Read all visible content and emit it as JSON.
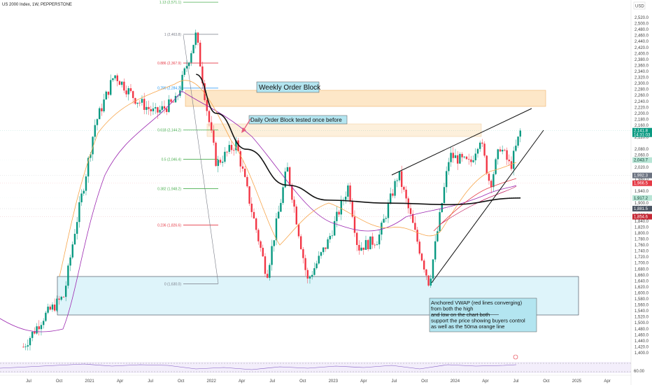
{
  "header": {
    "symbol_title": "US 2000 Index, 1W, PEPPERSTONE"
  },
  "price_axis": {
    "currency": "USD",
    "ticks": [
      "2,520.0",
      "2,500.0",
      "2,480.0",
      "2,460.0",
      "2,440.0",
      "2,420.0",
      "2,400.0",
      "2,380.0",
      "2,360.0",
      "2,340.0",
      "2,320.0",
      "2,300.0",
      "2,280.0",
      "2,260.0",
      "2,240.0",
      "2,220.0",
      "2,200.0",
      "2,180.0",
      "2,160.0",
      "2,120.0",
      "2,080.0",
      "2,060.0",
      "2,020.0",
      "1,980.0",
      "1,940.0",
      "1,900.0",
      "1,860.0",
      "1,840.0",
      "1,820.0",
      "1,800.0",
      "1,780.0",
      "1,760.0",
      "1,740.0",
      "1,720.0",
      "1,700.0",
      "1,680.0",
      "1,660.0",
      "1,640.0",
      "1,620.0",
      "1,600.0",
      "1,580.0",
      "1,560.0",
      "1,540.0",
      "1,520.0",
      "1,500.0",
      "1,480.0",
      "1,460.0",
      "1,440.0",
      "1,420.0",
      "1,400.0"
    ],
    "rsi_tick": "60.00"
  },
  "price_badges": [
    {
      "label": "2,141.8",
      "sublabel": "14:31:03",
      "value": 2141.8,
      "color": "#089981"
    },
    {
      "label": "2,043.7",
      "value": 2043.7,
      "color": "#b7e5d5"
    },
    {
      "label": "1,992.3",
      "value": 1992.3,
      "color": "#6b7280"
    },
    {
      "label": "1,966.5",
      "value": 1966.5,
      "color": "#e53945"
    },
    {
      "label": "1,917.2",
      "value": 1917.2,
      "color": "#b7e5d5"
    },
    {
      "label": "1,881.5",
      "value": 1881.5,
      "color": "#4b5563"
    },
    {
      "label": "1,854.6",
      "value": 1854.6,
      "color": "#c62835"
    }
  ],
  "time_axis": {
    "labels": [
      "Jul",
      "Oct",
      "2021",
      "Apr",
      "Jul",
      "Oct",
      "2022",
      "Apr",
      "Jul",
      "Oct",
      "2023",
      "Apr",
      "Jul",
      "Oct",
      "2024",
      "Apr",
      "Jul",
      "Oct",
      "2025",
      "Apr"
    ]
  },
  "fib_levels": [
    {
      "label": "1.13 (2,571.1)",
      "value": 2571.1,
      "color": "#4caf50"
    },
    {
      "label": "1 (2,463.8)",
      "value": 2463.8,
      "color": "#787b86"
    },
    {
      "label": "0.886 (2,367.9)",
      "value": 2367.9,
      "color": "#e53945"
    },
    {
      "label": "0.786 (2,284.2)",
      "value": 2284.2,
      "color": "#2196f3"
    },
    {
      "label": "0.618 (2,144.2)",
      "value": 2144.2,
      "color": "#4caf50"
    },
    {
      "label": "0.5 (2,046.4)",
      "value": 2046.4,
      "color": "#4caf50"
    },
    {
      "label": "0.382 (1,948.2)",
      "value": 1948.2,
      "color": "#4caf50"
    },
    {
      "label": "0.236 (1,826.6)",
      "value": 1826.6,
      "color": "#e53945"
    },
    {
      "label": "0 (1,630.0)",
      "value": 1630.0,
      "color": "#787b86"
    }
  ],
  "annotations": {
    "weekly_order_block": "Weekly Order Block",
    "daily_order_block": "Daily Order Block tested once before",
    "vwap_note": {
      "line1": "Anchored VWAP (red lines converging)",
      "line2": "from both the high",
      "line3": "and low on  the chart both",
      "line4": "support the price showing buyers control",
      "line5": "as well as the 50ma orange line"
    }
  },
  "colors": {
    "up": "#089981",
    "down": "#f23645",
    "ma_black": "#111111",
    "ma_orange": "#f7a54a",
    "ma_purple": "#9c27b0",
    "vwap_red": "#e53945",
    "weekly_block_fill": "#fde7c8",
    "daily_block_fill": "#fdf0dc",
    "demand_zone_fill": "#def4fa",
    "note_fill": "#b3e5f0"
  },
  "chart_data": {
    "type": "candlestick",
    "title": "US 2000 Index, 1W, PEPPERSTONE",
    "ylim": [
      1390,
      2530
    ],
    "xlim": [
      "2020-05",
      "2025-06"
    ],
    "grid": false,
    "legend": "none",
    "series": [
      {
        "kind": "ohlc-path",
        "points": [
          {
            "t": "2020-06",
            "v": 1420
          },
          {
            "t": "2020-08",
            "v": 1520
          },
          {
            "t": "2020-10",
            "v": 1590
          },
          {
            "t": "2020-11",
            "v": 1800
          },
          {
            "t": "2020-12",
            "v": 1970
          },
          {
            "t": "2021-01",
            "v": 2160
          },
          {
            "t": "2021-03",
            "v": 2330
          },
          {
            "t": "2021-05",
            "v": 2250
          },
          {
            "t": "2021-07",
            "v": 2200
          },
          {
            "t": "2021-09",
            "v": 2240
          },
          {
            "t": "2021-11",
            "v": 2463.8
          },
          {
            "t": "2021-12",
            "v": 2230
          },
          {
            "t": "2022-01",
            "v": 2030
          },
          {
            "t": "2022-03",
            "v": 2100
          },
          {
            "t": "2022-06",
            "v": 1660
          },
          {
            "t": "2022-08",
            "v": 2020
          },
          {
            "t": "2022-10",
            "v": 1640
          },
          {
            "t": "2022-12",
            "v": 1770
          },
          {
            "t": "2023-02",
            "v": 1960
          },
          {
            "t": "2023-03",
            "v": 1750
          },
          {
            "t": "2023-05",
            "v": 1780
          },
          {
            "t": "2023-07",
            "v": 2000
          },
          {
            "t": "2023-10",
            "v": 1630
          },
          {
            "t": "2023-12",
            "v": 2060
          },
          {
            "t": "2024-02",
            "v": 2030
          },
          {
            "t": "2024-03",
            "v": 2120
          },
          {
            "t": "2024-04",
            "v": 1960
          },
          {
            "t": "2024-05",
            "v": 2090
          },
          {
            "t": "2024-06",
            "v": 2020
          },
          {
            "t": "2024-07",
            "v": 2141.8
          }
        ]
      }
    ],
    "moving_average_black": [
      {
        "t": "2021-11",
        "v": 2330
      },
      {
        "t": "2022-01",
        "v": 2200
      },
      {
        "t": "2022-04",
        "v": 2080
      },
      {
        "t": "2022-08",
        "v": 1960
      },
      {
        "t": "2022-12",
        "v": 1910
      },
      {
        "t": "2023-06",
        "v": 1900
      },
      {
        "t": "2023-12",
        "v": 1895
      },
      {
        "t": "2024-07",
        "v": 1917.2
      }
    ],
    "zones": [
      {
        "name": "Weekly Order Block",
        "from": 2280,
        "to": 2230
      },
      {
        "name": "Daily Order Block",
        "from": 2165,
        "to": 2135
      },
      {
        "name": "Demand Zone",
        "from": 1640,
        "to": 1520
      }
    ],
    "trendlines": [
      {
        "from": {
          "t": "2023-07",
          "v": 2000
        },
        "to": {
          "t": "2024-08",
          "v": 2210
        }
      },
      {
        "from": {
          "t": "2023-10",
          "v": 1630
        },
        "to": {
          "t": "2024-08",
          "v": 2145
        }
      }
    ]
  }
}
